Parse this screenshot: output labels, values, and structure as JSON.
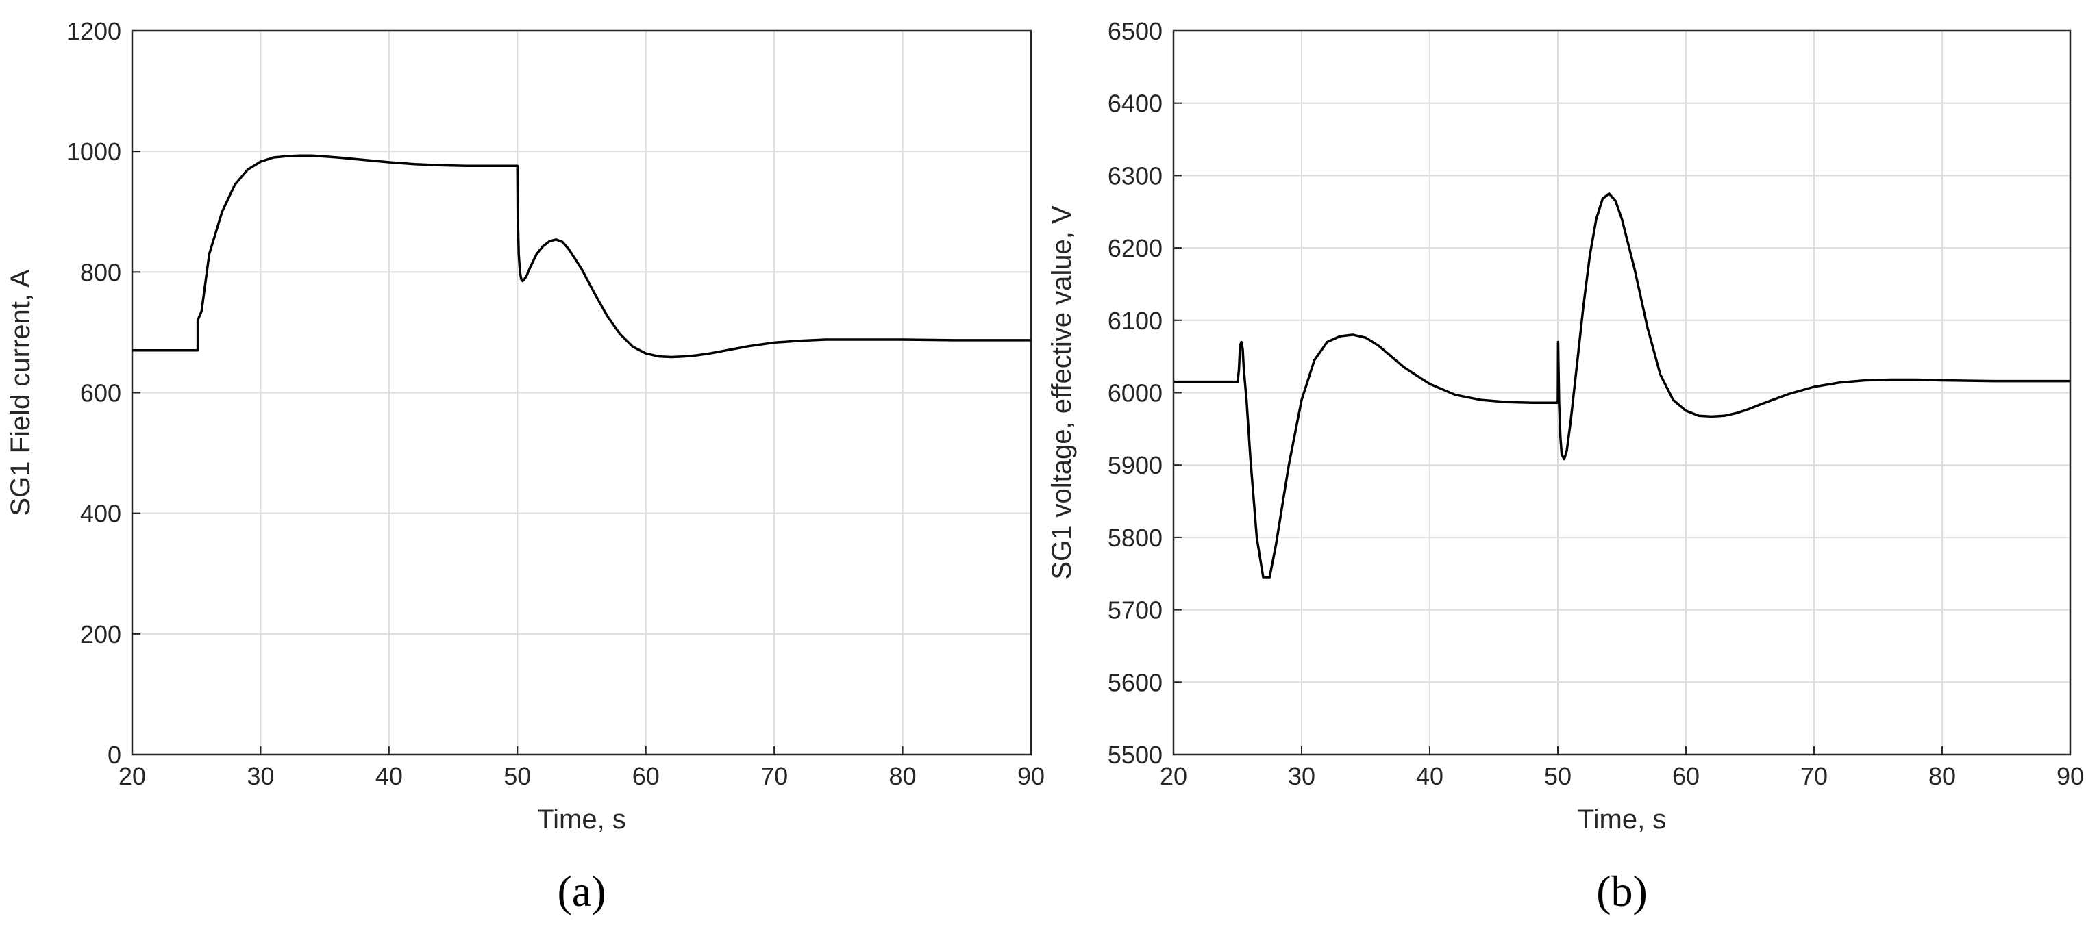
{
  "chart_data": [
    {
      "type": "line",
      "panel_label": "(a)",
      "xlabel": "Time, s",
      "ylabel": "SG1 Field current, A",
      "xlim": [
        20,
        90
      ],
      "ylim": [
        0,
        1200
      ],
      "xticks": [
        20,
        30,
        40,
        50,
        60,
        70,
        80,
        90
      ],
      "yticks": [
        0,
        200,
        400,
        600,
        800,
        1000,
        1200
      ],
      "grid": true,
      "series": [
        {
          "color": "#000000",
          "x": [
            20,
            25.1,
            25.1,
            25.4,
            26,
            27,
            28,
            29,
            30,
            31,
            32,
            33,
            34,
            36,
            38,
            40,
            42,
            44,
            46,
            48,
            50,
            50.02,
            50.1,
            50.2,
            50.3,
            50.4,
            50.5,
            50.7,
            51,
            51.5,
            52,
            52.5,
            53,
            53.5,
            54,
            55,
            56,
            57,
            58,
            59,
            60,
            61,
            62,
            63,
            64,
            65,
            66,
            68,
            70,
            72,
            74,
            76,
            78,
            80,
            84,
            88,
            90
          ],
          "y": [
            670,
            670,
            720,
            735,
            830,
            900,
            945,
            970,
            983,
            990,
            992,
            993,
            993,
            990,
            986,
            982,
            979,
            977,
            976,
            976,
            976,
            900,
            830,
            800,
            788,
            785,
            787,
            793,
            808,
            830,
            843,
            851,
            854,
            850,
            838,
            805,
            765,
            727,
            697,
            676,
            665,
            660,
            659,
            660,
            662,
            665,
            669,
            677,
            683,
            686,
            688,
            688,
            688,
            688,
            687,
            687,
            687
          ]
        }
      ]
    },
    {
      "type": "line",
      "panel_label": "(b)",
      "xlabel": "Time, s",
      "ylabel": "SG1 voltage, effective value, V",
      "xlim": [
        20,
        90
      ],
      "ylim": [
        5500,
        6500
      ],
      "xticks": [
        20,
        30,
        40,
        50,
        60,
        70,
        80,
        90
      ],
      "yticks": [
        5500,
        5600,
        5700,
        5800,
        5900,
        6000,
        6100,
        6200,
        6300,
        6400,
        6500
      ],
      "grid": true,
      "series": [
        {
          "color": "#000000",
          "x": [
            20,
            22,
            24,
            25,
            25.1,
            25.2,
            25.3,
            25.4,
            25.5,
            25.7,
            26,
            26.5,
            27,
            27.5,
            28,
            29,
            30,
            31,
            32,
            33,
            34,
            35,
            36,
            38,
            40,
            42,
            44,
            46,
            48,
            50,
            50.02,
            50.05,
            50.1,
            50.2,
            50.3,
            50.5,
            50.7,
            51,
            51.5,
            52,
            52.5,
            53,
            53.5,
            54,
            54.5,
            55,
            56,
            57,
            58,
            59,
            60,
            61,
            62,
            63,
            64,
            65,
            66,
            68,
            70,
            72,
            74,
            76,
            78,
            80,
            84,
            88,
            90
          ],
          "y": [
            6015,
            6015,
            6015,
            6015,
            6030,
            6065,
            6070,
            6060,
            6030,
            5990,
            5910,
            5800,
            5745,
            5745,
            5790,
            5900,
            5990,
            6045,
            6070,
            6078,
            6080,
            6076,
            6065,
            6035,
            6012,
            5997,
            5990,
            5987,
            5986,
            5986,
            6070,
            6040,
            5985,
            5940,
            5915,
            5908,
            5920,
            5960,
            6040,
            6120,
            6190,
            6240,
            6268,
            6275,
            6265,
            6240,
            6170,
            6090,
            6025,
            5990,
            5975,
            5968,
            5967,
            5968,
            5972,
            5978,
            5985,
            5998,
            6008,
            6014,
            6017,
            6018,
            6018,
            6017,
            6016,
            6016,
            6016
          ]
        }
      ]
    }
  ]
}
